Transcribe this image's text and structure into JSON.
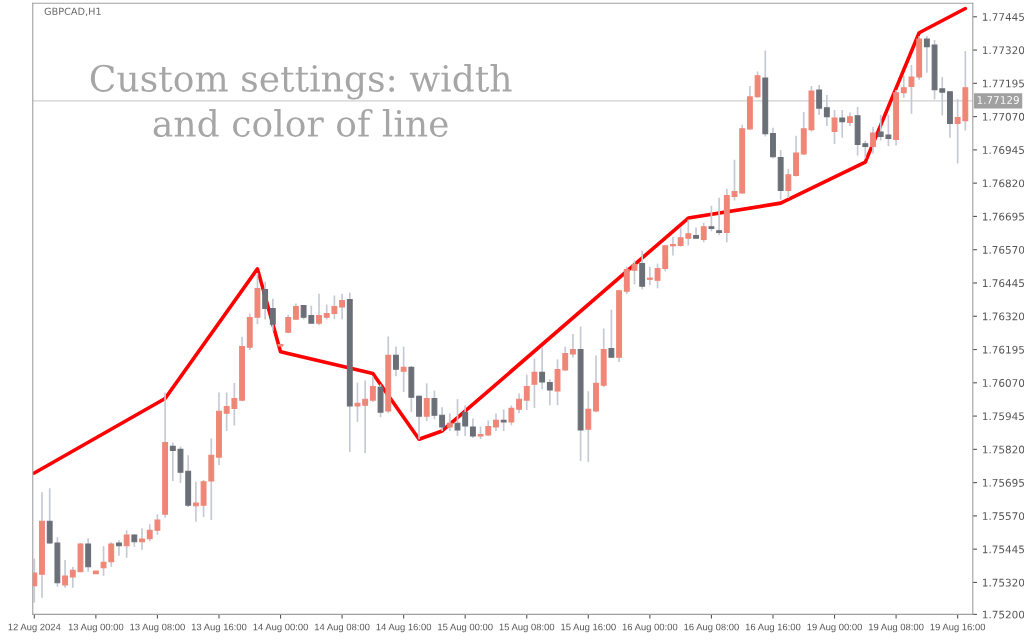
{
  "chart_data": {
    "type": "candlestick",
    "title": "GBPCAD,H1",
    "annotations": [
      "Custom settings: width\nand color of line"
    ],
    "colors": [
      "#ef8677",
      "#ef8677",
      "#6b6f77",
      "#6b6f77",
      "#ef8677",
      "#ef8677",
      "#ef8677",
      "#6b6f77",
      "#ef8677",
      "#ef8677",
      "#ef8677",
      "#6b6f77",
      "#ef8677",
      "#6b6f77",
      "#ef8677",
      "#ef8677",
      "#ef8677",
      "#ef8677",
      "#6b6f77",
      "#6b6f77",
      "#6b6f77",
      "#ef8677",
      "#ef8677",
      "#ef8677",
      "#ef8677",
      "#ef8677",
      "#ef8677",
      "#ef8677",
      "#ef8677",
      "#ef8677",
      "#6b6f77",
      "#6b6f77",
      "#ef8677",
      "#ef8677",
      "#ef8677",
      "#6b6f77",
      "#6b6f77",
      "#ef8677",
      "#ef8677",
      "#ef8677",
      "#ef8677",
      "#6b6f77",
      "#ef8677",
      "#ef8677",
      "#ef8677",
      "#6b6f77",
      "#ef8677",
      "#6b6f77",
      "#ef8677",
      "#6b6f77",
      "#6b6f77",
      "#ef8677",
      "#6b6f77",
      "#6b6f77",
      "#ef8677",
      "#6b6f77",
      "#6b6f77",
      "#6b6f77",
      "#ef8677",
      "#ef8677",
      "#ef8677",
      "#6b6f77",
      "#ef8677",
      "#ef8677",
      "#ef8677",
      "#ef8677",
      "#6b6f77",
      "#6b6f77",
      "#ef8677",
      "#ef8677",
      "#ef8677",
      "#6b6f77",
      "#ef8677",
      "#ef8677",
      "#ef8677",
      "#6b6f77",
      "#ef8677",
      "#ef8677",
      "#ef8677",
      "#6b6f77",
      "#ef8677",
      "#ef8677",
      "#ef8677",
      "#ef8677",
      "#ef8677",
      "#ef8677",
      "#6b6f77",
      "#ef8677",
      "#6b6f77",
      "#6b6f77",
      "#ef8677",
      "#ef8677",
      "#ef8677",
      "#ef8677",
      "#ef8677",
      "#6b6f77",
      "#6b6f77",
      "#6b6f77",
      "#ef8677",
      "#ef8677",
      "#ef8677",
      "#ef8677",
      "#6b6f77",
      "#6b6f77",
      "#ef8677",
      "#6b6f77",
      "#ef8677",
      "#6b6f77",
      "#6b6f77",
      "#ef8677",
      "#6b6f77",
      "#6b6f77",
      "#ef8677",
      "#ef8677",
      "#ef8677",
      "#ef8677",
      "#6b6f77",
      "#6b6f77",
      "#6b6f77",
      "#6b6f77",
      "#ef8677",
      "#ef8677"
    ],
    "categories": [
      "12 Aug 2024",
      null,
      null,
      null,
      null,
      null,
      null,
      null,
      "13 Aug 00:00",
      null,
      null,
      null,
      null,
      null,
      null,
      null,
      "13 Aug 08:00",
      null,
      null,
      null,
      null,
      null,
      null,
      null,
      "13 Aug 16:00",
      null,
      null,
      null,
      null,
      null,
      null,
      null,
      "14 Aug 00:00",
      null,
      null,
      null,
      null,
      null,
      null,
      null,
      "14 Aug 08:00",
      null,
      null,
      null,
      null,
      null,
      null,
      null,
      "14 Aug 16:00",
      null,
      null,
      null,
      null,
      null,
      null,
      null,
      "15 Aug 00:00",
      null,
      null,
      null,
      null,
      null,
      null,
      null,
      "15 Aug 08:00",
      null,
      null,
      null,
      null,
      null,
      null,
      null,
      "15 Aug 16:00",
      null,
      null,
      null,
      null,
      null,
      null,
      null,
      "16 Aug 00:00",
      null,
      null,
      null,
      null,
      null,
      null,
      null,
      "16 Aug 08:00",
      null,
      null,
      null,
      null,
      null,
      null,
      null,
      "16 Aug 16:00",
      null,
      null,
      null,
      null,
      null,
      null,
      null,
      "19 Aug 00:00",
      null,
      null,
      null,
      null,
      null,
      null,
      null,
      "19 Aug 08:00",
      null,
      null,
      null,
      null,
      null,
      null,
      null,
      "19 Aug 16:00",
      null
    ],
    "ohlc": [
      [
        1.75308,
        1.7541,
        1.75245,
        1.75355
      ],
      [
        1.75351,
        1.75659,
        1.75263,
        1.7555
      ],
      [
        1.7555,
        1.75674,
        1.75464,
        1.75468
      ],
      [
        1.75468,
        1.7549,
        1.75304,
        1.75319
      ],
      [
        1.75311,
        1.75404,
        1.753,
        1.75344
      ],
      [
        1.75341,
        1.75378,
        1.753,
        1.75366
      ],
      [
        1.7536,
        1.75468,
        1.7536,
        1.75464
      ],
      [
        1.75464,
        1.75486,
        1.7536,
        1.75379
      ],
      [
        1.75353,
        1.75363,
        1.75353,
        1.75363
      ],
      [
        1.75375,
        1.75456,
        1.75345,
        1.75396
      ],
      [
        1.75398,
        1.75471,
        1.75379,
        1.75464
      ],
      [
        1.75468,
        1.75479,
        1.7542,
        1.75458
      ],
      [
        1.75458,
        1.75516,
        1.75413,
        1.75498
      ],
      [
        1.75498,
        1.75501,
        1.75454,
        1.75473
      ],
      [
        1.75473,
        1.75524,
        1.75443,
        1.75483
      ],
      [
        1.75484,
        1.75539,
        1.75475,
        1.75516
      ],
      [
        1.75516,
        1.75576,
        1.75499,
        1.75554
      ],
      [
        1.75576,
        1.76034,
        1.75563,
        1.75846
      ],
      [
        1.75831,
        1.75846,
        1.75701,
        1.75816
      ],
      [
        1.7582,
        1.75831,
        1.75694,
        1.75734
      ],
      [
        1.75738,
        1.75798,
        1.75603,
        1.7561
      ],
      [
        1.75608,
        1.75698,
        1.75548,
        1.75618
      ],
      [
        1.7561,
        1.75705,
        1.75566,
        1.75698
      ],
      [
        1.75701,
        1.75861,
        1.75555,
        1.75798
      ],
      [
        1.75791,
        1.76034,
        1.75761,
        1.75963
      ],
      [
        1.75956,
        1.76034,
        1.75889,
        1.75981
      ],
      [
        1.75974,
        1.76069,
        1.7591,
        1.76011
      ],
      [
        1.76005,
        1.76243,
        1.76001,
        1.76206
      ],
      [
        1.76204,
        1.7633,
        1.76193,
        1.76315
      ],
      [
        1.76316,
        1.76483,
        1.7629,
        1.76424
      ],
      [
        1.7642,
        1.7645,
        1.76308,
        1.76349
      ],
      [
        1.76349,
        1.76386,
        1.76264,
        1.7629
      ],
      [
        1.76208,
        1.76217,
        1.76208,
        1.76214
      ],
      [
        1.7626,
        1.76326,
        1.76256,
        1.76315
      ],
      [
        1.76309,
        1.76368,
        1.76309,
        1.76356
      ],
      [
        1.7636,
        1.7636,
        1.76308,
        1.76316
      ],
      [
        1.76323,
        1.7636,
        1.76294,
        1.76294
      ],
      [
        1.76294,
        1.76405,
        1.76286,
        1.76323
      ],
      [
        1.76316,
        1.76364,
        1.76308,
        1.7633
      ],
      [
        1.76331,
        1.76398,
        1.76309,
        1.76356
      ],
      [
        1.76355,
        1.76405,
        1.76308,
        1.76379
      ],
      [
        1.76383,
        1.76409,
        1.7581,
        1.75983
      ],
      [
        1.75983,
        1.76071,
        1.75923,
        1.75993
      ],
      [
        1.75986,
        1.76079,
        1.75806,
        1.76008
      ],
      [
        1.76005,
        1.76094,
        1.75998,
        1.76056
      ],
      [
        1.76053,
        1.76064,
        1.75941,
        1.7596
      ],
      [
        1.75964,
        1.76244,
        1.75956,
        1.76173
      ],
      [
        1.76173,
        1.76206,
        1.76095,
        1.76121
      ],
      [
        1.76114,
        1.76206,
        1.76035,
        1.76128
      ],
      [
        1.76128,
        1.76133,
        1.7596,
        1.76016
      ],
      [
        1.76019,
        1.76023,
        1.75858,
        1.75945
      ],
      [
        1.75945,
        1.76068,
        1.75926,
        1.76011
      ],
      [
        1.76011,
        1.76041,
        1.75933,
        1.75948
      ],
      [
        1.75948,
        1.75978,
        1.75889,
        1.75904
      ],
      [
        1.75904,
        1.75955,
        1.75889,
        1.75918
      ],
      [
        1.75918,
        1.76009,
        1.7587,
        1.75893
      ],
      [
        1.75959,
        1.75985,
        1.7587,
        1.75908
      ],
      [
        1.75904,
        1.75936,
        1.75863,
        1.7587
      ],
      [
        1.7587,
        1.75906,
        1.75859,
        1.75876
      ],
      [
        1.75874,
        1.75929,
        1.7587,
        1.75906
      ],
      [
        1.75904,
        1.75955,
        1.75889,
        1.75929
      ],
      [
        1.75929,
        1.7597,
        1.75889,
        1.75923
      ],
      [
        1.75923,
        1.75985,
        1.7591,
        1.75974
      ],
      [
        1.75971,
        1.7603,
        1.75956,
        1.76008
      ],
      [
        1.76005,
        1.76101,
        1.75968,
        1.76056
      ],
      [
        1.76065,
        1.76161,
        1.75975,
        1.76109
      ],
      [
        1.76109,
        1.76204,
        1.76046,
        1.76073
      ],
      [
        1.76071,
        1.76083,
        1.75986,
        1.76043
      ],
      [
        1.76039,
        1.76158,
        1.75986,
        1.7612
      ],
      [
        1.76118,
        1.76206,
        1.76114,
        1.7618
      ],
      [
        1.76178,
        1.76253,
        1.76165,
        1.76195
      ],
      [
        1.76195,
        1.76281,
        1.75776,
        1.75893
      ],
      [
        1.75896,
        1.76038,
        1.75773,
        1.7597
      ],
      [
        1.75964,
        1.76173,
        1.75959,
        1.76068
      ],
      [
        1.76061,
        1.76274,
        1.76054,
        1.76195
      ],
      [
        1.76199,
        1.76345,
        1.76163,
        1.76166
      ],
      [
        1.76166,
        1.7642,
        1.76148,
        1.76416
      ],
      [
        1.76414,
        1.76506,
        1.76403,
        1.76495
      ],
      [
        1.76493,
        1.76529,
        1.7644,
        1.76514
      ],
      [
        1.76518,
        1.76566,
        1.76421,
        1.76433
      ],
      [
        1.76459,
        1.76506,
        1.76436,
        1.76463
      ],
      [
        1.76455,
        1.76518,
        1.76425,
        1.76499
      ],
      [
        1.765,
        1.76589,
        1.76489,
        1.76585
      ],
      [
        1.76585,
        1.76619,
        1.76548,
        1.76589
      ],
      [
        1.76586,
        1.76653,
        1.76581,
        1.76615
      ],
      [
        1.76613,
        1.76683,
        1.76586,
        1.7663
      ],
      [
        1.76623,
        1.76653,
        1.76613,
        1.76613
      ],
      [
        1.76609,
        1.76671,
        1.76598,
        1.76656
      ],
      [
        1.76656,
        1.76735,
        1.76639,
        1.7665
      ],
      [
        1.76641,
        1.76765,
        1.76624,
        1.76635
      ],
      [
        1.76635,
        1.76799,
        1.76598,
        1.76773
      ],
      [
        1.7677,
        1.76908,
        1.76755,
        1.76788
      ],
      [
        1.76783,
        1.77039,
        1.7678,
        1.77024
      ],
      [
        1.77024,
        1.77185,
        1.7702,
        1.77144
      ],
      [
        1.77145,
        1.77239,
        1.77141,
        1.77223
      ],
      [
        1.77215,
        1.77318,
        1.76995,
        1.77006
      ],
      [
        1.77006,
        1.77028,
        1.76913,
        1.76919
      ],
      [
        1.76916,
        1.76945,
        1.76758,
        1.76793
      ],
      [
        1.76793,
        1.76873,
        1.76764,
        1.76851
      ],
      [
        1.76849,
        1.76998,
        1.76845,
        1.76933
      ],
      [
        1.7693,
        1.77087,
        1.76926,
        1.77024
      ],
      [
        1.77021,
        1.77185,
        1.77014,
        1.77166
      ],
      [
        1.7717,
        1.77189,
        1.77076,
        1.77102
      ],
      [
        1.77103,
        1.77151,
        1.77035,
        1.7707
      ],
      [
        1.77014,
        1.77095,
        1.76967,
        1.77065
      ],
      [
        1.77065,
        1.77095,
        1.76991,
        1.77051
      ],
      [
        1.77048,
        1.77085,
        1.77035,
        1.77069
      ],
      [
        1.77073,
        1.77106,
        1.76924,
        1.76965
      ],
      [
        1.76968,
        1.76979,
        1.76914,
        1.76958
      ],
      [
        1.76958,
        1.77031,
        1.7693,
        1.77008
      ],
      [
        1.77012,
        1.77076,
        1.7698,
        1.76995
      ],
      [
        1.77001,
        1.77076,
        1.7696,
        1.76988
      ],
      [
        1.76984,
        1.7717,
        1.76961,
        1.77159
      ],
      [
        1.7716,
        1.77223,
        1.77141,
        1.77178
      ],
      [
        1.77183,
        1.77264,
        1.77081,
        1.77219
      ],
      [
        1.77219,
        1.77373,
        1.77208,
        1.77361
      ],
      [
        1.77361,
        1.77373,
        1.77235,
        1.77333
      ],
      [
        1.77339,
        1.77358,
        1.77134,
        1.77171
      ],
      [
        1.77174,
        1.77219,
        1.77074,
        1.77162
      ],
      [
        1.77163,
        1.77163,
        1.76991,
        1.77044
      ],
      [
        1.77044,
        1.77136,
        1.76894,
        1.77066
      ],
      [
        1.77055,
        1.77316,
        1.77018,
        1.77178
      ]
    ],
    "series": [
      {
        "type": "line",
        "color": "#ff0000",
        "values": [
          1.75731,
          null,
          null,
          null,
          null,
          null,
          null,
          null,
          null,
          null,
          null,
          null,
          null,
          null,
          null,
          null,
          null,
          1.76011,
          null,
          null,
          null,
          null,
          null,
          null,
          null,
          null,
          null,
          null,
          null,
          1.76498,
          null,
          null,
          1.76187,
          null,
          null,
          null,
          null,
          null,
          null,
          null,
          null,
          null,
          null,
          null,
          1.76105,
          null,
          null,
          null,
          null,
          null,
          1.75858,
          null,
          null,
          1.75889,
          null,
          null,
          null,
          null,
          null,
          null,
          null,
          null,
          null,
          null,
          null,
          null,
          null,
          null,
          null,
          null,
          null,
          null,
          null,
          null,
          null,
          null,
          null,
          null,
          null,
          null,
          null,
          null,
          null,
          null,
          null,
          1.76689,
          null,
          null,
          null,
          null,
          null,
          null,
          null,
          null,
          null,
          null,
          null,
          1.76745,
          null,
          null,
          null,
          null,
          null,
          null,
          null,
          null,
          null,
          null,
          1.76899,
          null,
          null,
          null,
          null,
          null,
          null,
          1.77385,
          null,
          null,
          null,
          null,
          null,
          1.77476
        ]
      }
    ],
    "ref_lines": [
      {
        "axis": "y",
        "value": 1.77129,
        "label": "1.77129",
        "color": "#d0d0d0"
      }
    ],
    "ylim": [
      1.752,
      1.77496
    ],
    "yticks": [
      {
        "value": 1.77445,
        "label": "1.77445"
      },
      {
        "value": 1.7732,
        "label": "1.77320"
      },
      {
        "value": 1.77195,
        "label": "1.77195"
      },
      {
        "value": 1.7707,
        "label": "1.77070"
      },
      {
        "value": 1.76945,
        "label": "1.76945"
      },
      {
        "value": 1.7682,
        "label": "1.76820"
      },
      {
        "value": 1.76695,
        "label": "1.76695"
      },
      {
        "value": 1.7657,
        "label": "1.76570"
      },
      {
        "value": 1.76445,
        "label": "1.76445"
      },
      {
        "value": 1.7632,
        "label": "1.76320"
      },
      {
        "value": 1.76195,
        "label": "1.76195"
      },
      {
        "value": 1.7607,
        "label": "1.76070"
      },
      {
        "value": 1.75945,
        "label": "1.75945"
      },
      {
        "value": 1.7582,
        "label": "1.75820"
      },
      {
        "value": 1.75695,
        "label": "1.75695"
      },
      {
        "value": 1.7557,
        "label": "1.75570"
      },
      {
        "value": 1.75445,
        "label": "1.75445"
      },
      {
        "value": 1.7532,
        "label": "1.75320"
      },
      {
        "value": 1.752,
        "label": "1.75200"
      }
    ],
    "grid": false,
    "legend": false
  }
}
